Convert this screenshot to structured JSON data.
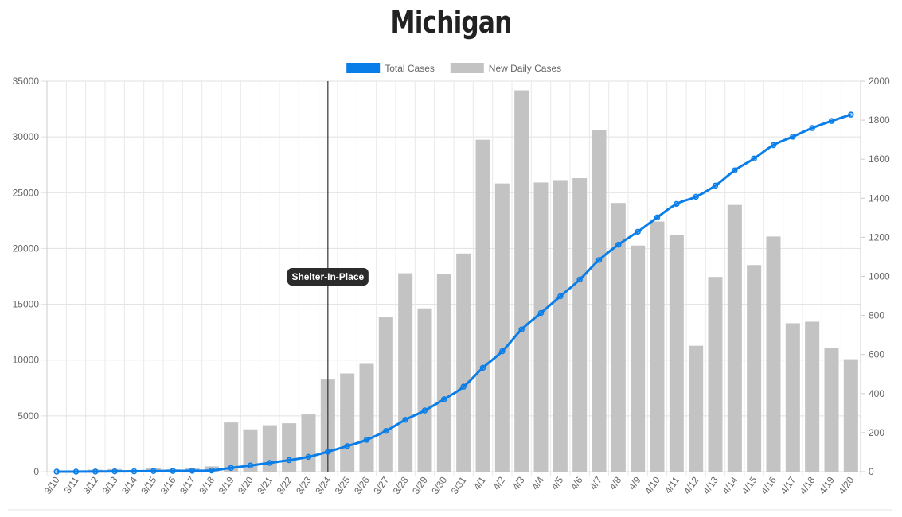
{
  "chart_data": {
    "type": "bar+line",
    "title": "Michigan",
    "categories": [
      "3/10",
      "3/11",
      "3/12",
      "3/13",
      "3/14",
      "3/15",
      "3/16",
      "3/17",
      "3/18",
      "3/19",
      "3/20",
      "3/21",
      "3/22",
      "3/23",
      "3/24",
      "3/25",
      "3/26",
      "3/27",
      "3/28",
      "3/29",
      "3/30",
      "3/31",
      "4/1",
      "4/2",
      "4/3",
      "4/4",
      "4/5",
      "4/6",
      "4/7",
      "4/8",
      "4/9",
      "4/10",
      "4/11",
      "4/12",
      "4/13",
      "4/14",
      "4/15",
      "4/16",
      "4/17",
      "4/18",
      "4/19",
      "4/20"
    ],
    "series": [
      {
        "name": "Total Cases",
        "type": "line",
        "axis": "left",
        "color": "#0a7ee8",
        "values": [
          2,
          2,
          12,
          25,
          33,
          53,
          65,
          83,
          110,
          336,
          549,
          787,
          1035,
          1328,
          1791,
          2294,
          2856,
          3657,
          4650,
          5486,
          6498,
          7615,
          9315,
          10791,
          12744,
          14225,
          15718,
          17221,
          18970,
          20346,
          21504,
          22783,
          23993,
          24638,
          25635,
          27001,
          28059,
          29263,
          30023,
          30791,
          31424,
          32000
        ]
      },
      {
        "name": "New Daily Cases",
        "type": "bar",
        "axis": "right",
        "color": "#c3c3c3",
        "values": [
          0,
          0,
          10,
          13,
          8,
          20,
          12,
          18,
          27,
          252,
          217,
          238,
          248,
          293,
          472,
          503,
          552,
          790,
          1016,
          836,
          1012,
          1117,
          1700,
          1476,
          1953,
          1481,
          1493,
          1503,
          1749,
          1376,
          1158,
          1281,
          1210,
          645,
          997,
          1366,
          1058,
          1204,
          760,
          768,
          633,
          576
        ]
      }
    ],
    "y_left": {
      "min": 0,
      "max": 35000,
      "step": 5000,
      "ticks": [
        "0",
        "5000",
        "10000",
        "15000",
        "20000",
        "25000",
        "30000",
        "35000"
      ]
    },
    "y_right": {
      "min": 0,
      "max": 2000,
      "step": 200,
      "ticks": [
        "0",
        "200",
        "400",
        "600",
        "800",
        "1000",
        "1200",
        "1400",
        "1600",
        "1800",
        "2000"
      ]
    },
    "grid": true,
    "legend_position": "top-center",
    "annotation": {
      "label": "Shelter-In-Place",
      "at_category": "3/24"
    }
  }
}
